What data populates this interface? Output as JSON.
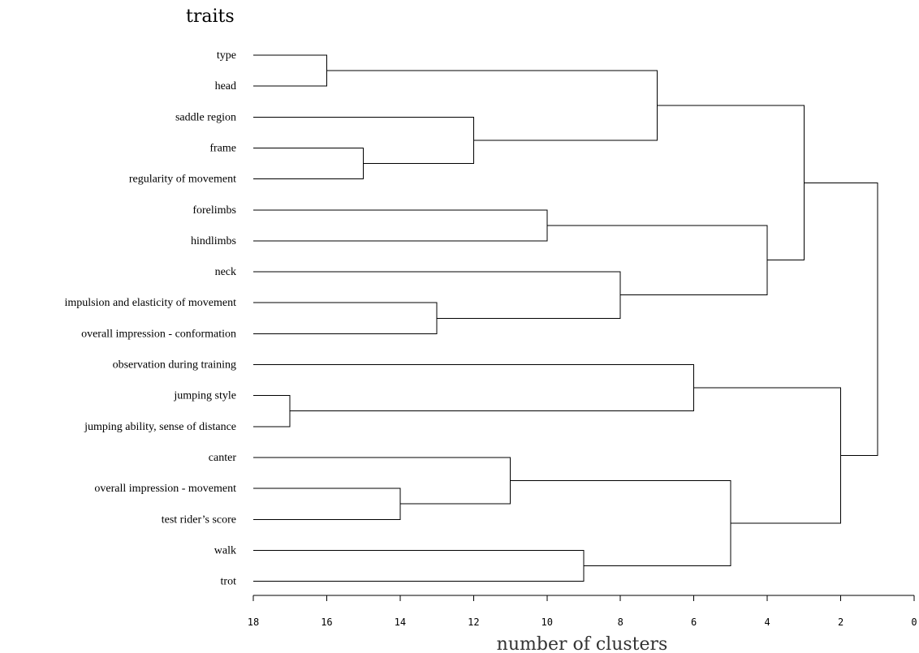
{
  "chart_data": {
    "type": "dendrogram",
    "title": "traits",
    "xlabel": "number of clusters",
    "x_axis": {
      "range": [
        18,
        0
      ],
      "ticks": [
        18,
        16,
        14,
        12,
        10,
        8,
        6,
        4,
        2,
        0
      ],
      "direction": "decreasing"
    },
    "leaves": [
      "type",
      "head",
      "saddle region",
      "frame",
      "regularity of movement",
      "forelimbs",
      "hindlimbs",
      "neck",
      "impulsion and elasticity of movement",
      "overall impression - conformation",
      "observation during training",
      "jumping style",
      "jumping ability, sense of distance",
      "canter",
      "overall impression - movement",
      "test rider’s score",
      "walk",
      "trot"
    ],
    "merges": [
      {
        "id": "A",
        "children": [
          "type",
          "head"
        ],
        "height": 16
      },
      {
        "id": "B",
        "children": [
          "frame",
          "regularity of movement"
        ],
        "height": 15
      },
      {
        "id": "C",
        "children": [
          "saddle region",
          "B"
        ],
        "height": 12
      },
      {
        "id": "D",
        "children": [
          "A",
          "C"
        ],
        "height": 7
      },
      {
        "id": "E",
        "children": [
          "forelimbs",
          "hindlimbs"
        ],
        "height": 10
      },
      {
        "id": "F",
        "children": [
          "impulsion and elasticity of movement",
          "overall impression - conformation"
        ],
        "height": 13
      },
      {
        "id": "G",
        "children": [
          "neck",
          "F"
        ],
        "height": 8
      },
      {
        "id": "H",
        "children": [
          "E",
          "G"
        ],
        "height": 4
      },
      {
        "id": "I",
        "children": [
          "D",
          "H"
        ],
        "height": 3
      },
      {
        "id": "J",
        "children": [
          "jumping style",
          "jumping ability, sense of distance"
        ],
        "height": 17
      },
      {
        "id": "K",
        "children": [
          "observation during training",
          "J"
        ],
        "height": 6
      },
      {
        "id": "L",
        "children": [
          "overall impression - movement",
          "test rider’s score"
        ],
        "height": 14
      },
      {
        "id": "M",
        "children": [
          "canter",
          "L"
        ],
        "height": 11
      },
      {
        "id": "N",
        "children": [
          "walk",
          "trot"
        ],
        "height": 9
      },
      {
        "id": "O",
        "children": [
          "M",
          "N"
        ],
        "height": 5
      },
      {
        "id": "P",
        "children": [
          "K",
          "O"
        ],
        "height": 2
      },
      {
        "id": "Q",
        "children": [
          "I",
          "P"
        ],
        "height": 1
      }
    ]
  }
}
